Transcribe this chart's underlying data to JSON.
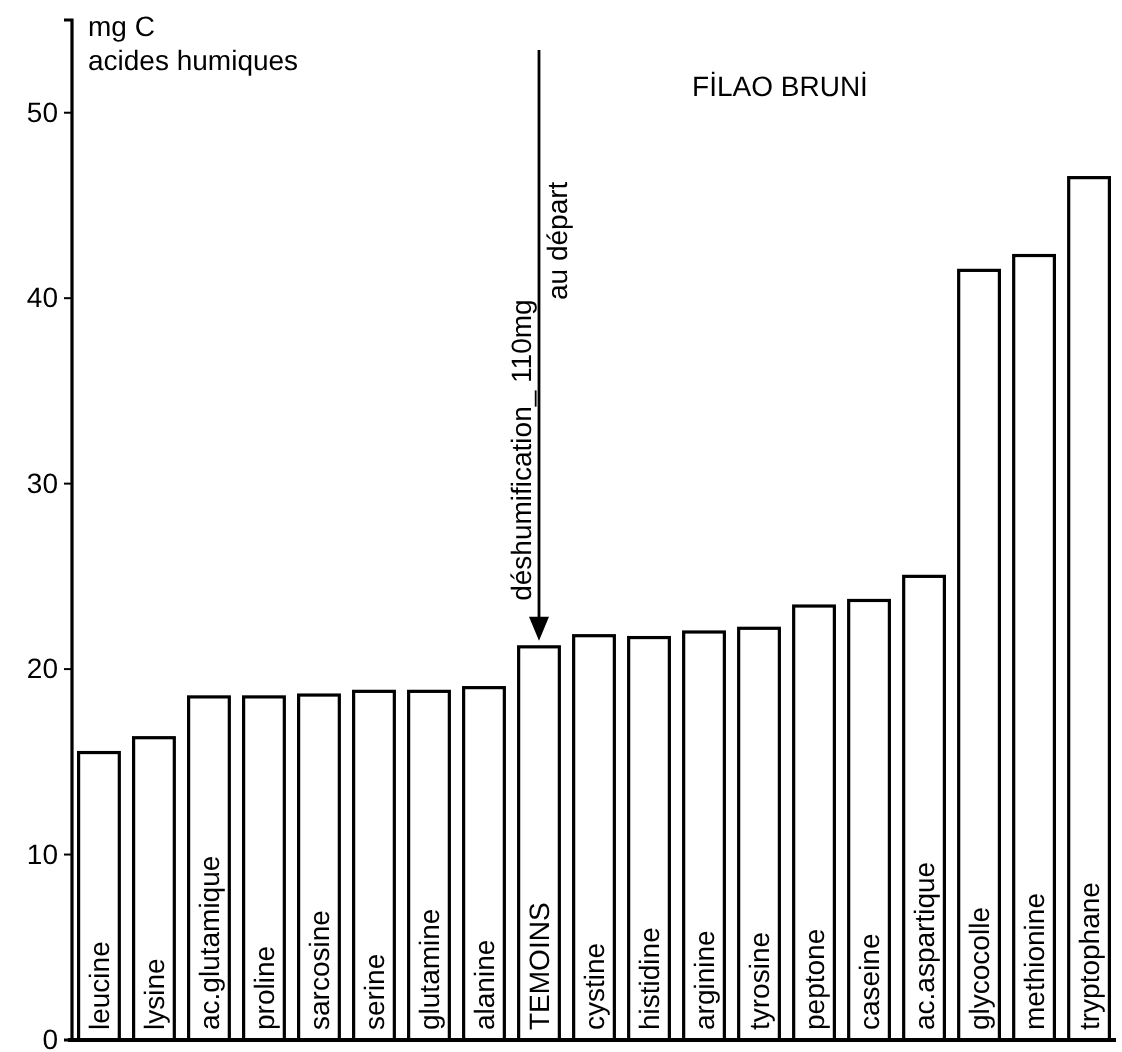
{
  "chart_data": {
    "type": "bar",
    "title": "FİLAO BRUNİ",
    "ylabel": "mg C\nacides humiques",
    "categories": [
      "leucine",
      "lysine",
      "ac.glutamique",
      "proline",
      "sarcosine",
      "serine",
      "glutamine",
      "alanine",
      "TEMOINS",
      "cystine",
      "histidine",
      "arginine",
      "tyrosine",
      "peptone",
      "caseine",
      "ac.aspartique",
      "glycocolle",
      "methionine",
      "tryptophane"
    ],
    "values": [
      15.5,
      16.3,
      18.5,
      18.5,
      18.6,
      18.8,
      18.8,
      19.0,
      21.2,
      21.8,
      21.7,
      22.0,
      22.2,
      23.4,
      23.7,
      25.0,
      41.5,
      42.3,
      46.5
    ],
    "color": "#ffffff",
    "ylim": [
      0,
      55
    ],
    "yticks": [
      0,
      10,
      20,
      30,
      40,
      50
    ],
    "annotations": [
      {
        "text": "déshumification_ 110mg",
        "x": "TEMOINS",
        "y": 21.2
      },
      "au départ"
    ],
    "grid": false
  }
}
